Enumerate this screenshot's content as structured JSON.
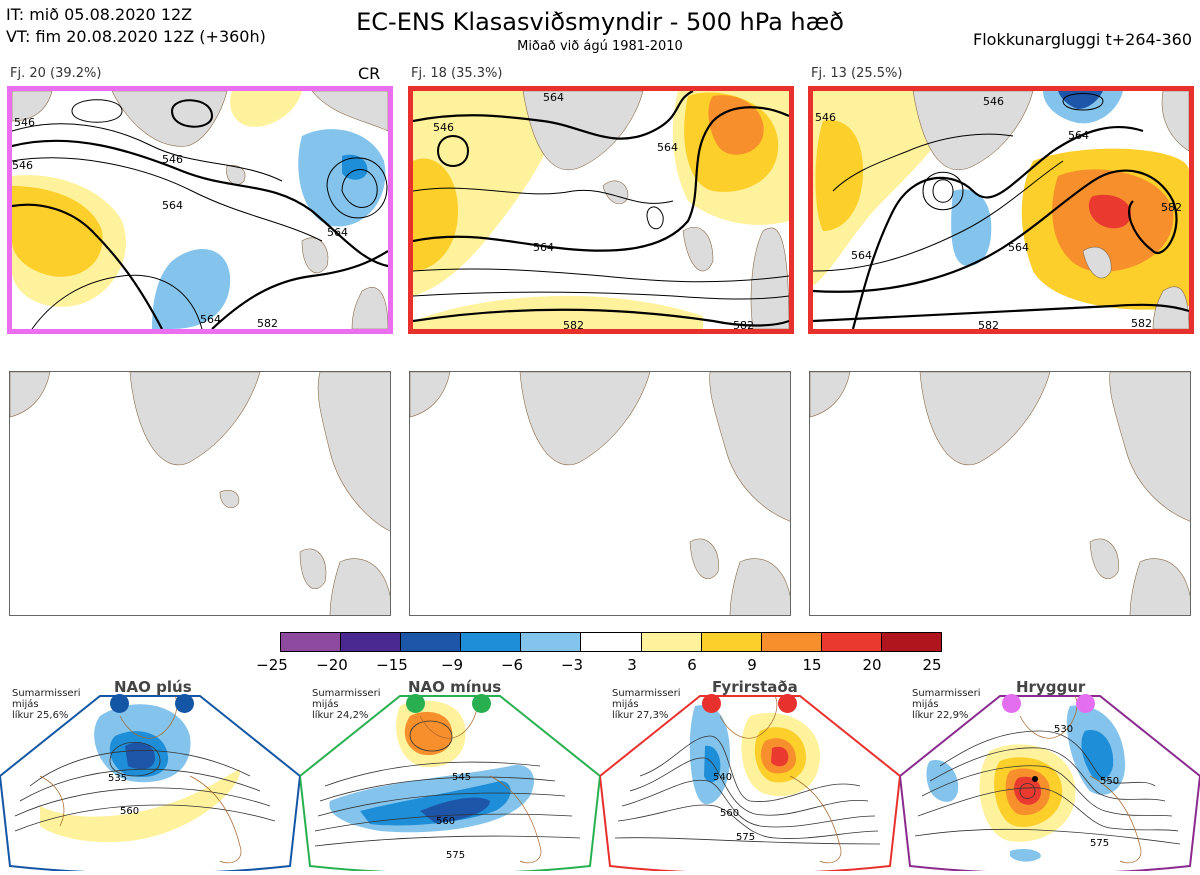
{
  "header": {
    "it_line": "IT: mið 05.08.2020 12Z",
    "vt_line": "VT: fim 20.08.2020 12Z  (+360h)",
    "title": "EC-ENS Klasasviðsmyndir - 500 hPa hæð",
    "subtitle": "Miðað við ágú 1981-2010",
    "window": "Flokkunargluggi t+264-360"
  },
  "panels": [
    {
      "label": "Fj. 20 (39.2%)",
      "tag": "CR",
      "border_color": "#ec6ef0",
      "contours": [
        "546",
        "546",
        "546",
        "564",
        "564",
        "564",
        "582"
      ]
    },
    {
      "label": "Fj. 18 (35.3%)",
      "tag": "",
      "border_color": "#e8302c",
      "contours": [
        "546",
        "564",
        "564",
        "564",
        "582",
        "582"
      ]
    },
    {
      "label": "Fj. 13 (25.5%)",
      "tag": "",
      "border_color": "#e8302c",
      "contours": [
        "546",
        "546",
        "564",
        "564",
        "564",
        "582",
        "582",
        "582"
      ]
    }
  ],
  "colorbar": {
    "ticks": [
      "−25",
      "−20",
      "−15",
      "−9",
      "−6",
      "−3",
      "3",
      "6",
      "9",
      "15",
      "20",
      "25"
    ],
    "colors": [
      "#8e4a9e",
      "#4a2a90",
      "#1d55a8",
      "#1f8ed8",
      "#84c4ec",
      "#ffffff",
      "#fff29c",
      "#fdcf2a",
      "#f7902c",
      "#ea3a30",
      "#b0141c"
    ]
  },
  "regimes": [
    {
      "name": "NAO plús",
      "season": "Sumarmisseri",
      "mean": "mijás",
      "prob": "líkur 25,6%",
      "color": "#1456a6",
      "contours": [
        "535",
        "560"
      ]
    },
    {
      "name": "NAO mínus",
      "season": "Sumarmisseri",
      "mean": "mijás",
      "prob": "líkur 24,2%",
      "color": "#28b050",
      "contours": [
        "545",
        "560",
        "575"
      ]
    },
    {
      "name": "Fyrirstaða",
      "season": "Sumarmisseri",
      "mean": "mijás",
      "prob": "líkur 27,3%",
      "color": "#e8302c",
      "contours": [
        "540",
        "560",
        "575"
      ]
    },
    {
      "name": "Hryggur",
      "season": "Sumarmisseri",
      "mean": "mijás",
      "prob": "líkur 22,9%",
      "color": "#e46ef0",
      "contours": [
        "530",
        "550",
        "575"
      ]
    }
  ]
}
